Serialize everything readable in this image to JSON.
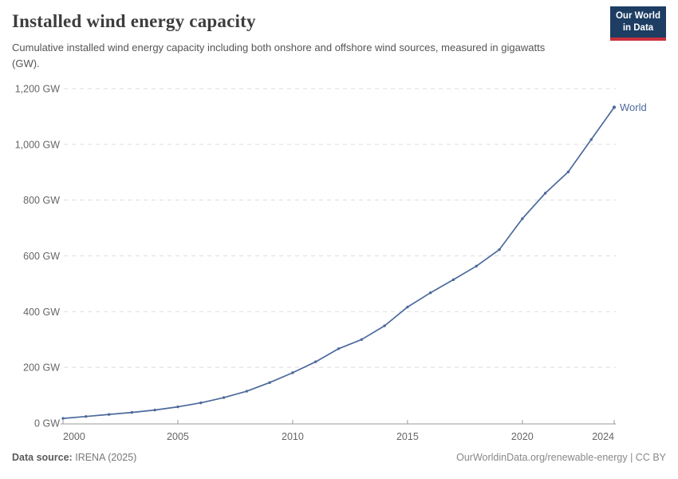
{
  "header": {
    "title": "Installed wind energy capacity",
    "subtitle": "Cumulative installed wind energy capacity including both onshore and offshore wind sources, measured in gigawatts (GW).",
    "logo": {
      "line1": "Our World",
      "line2": "in Data"
    }
  },
  "chart_data": {
    "type": "line",
    "title": "Installed wind energy capacity",
    "xlabel": "",
    "ylabel": "",
    "unit": "GW",
    "xlim": [
      2000,
      2024
    ],
    "ylim": [
      0,
      1200
    ],
    "x_ticks": [
      2000,
      2005,
      2010,
      2015,
      2020,
      2024
    ],
    "y_tick_values": [
      0,
      200,
      400,
      600,
      800,
      1000,
      1200
    ],
    "y_tick_labels": [
      "0 GW",
      "200 GW",
      "400 GW",
      "600 GW",
      "800 GW",
      "1,000 GW",
      "1,200 GW"
    ],
    "grid": "horizontal-dashed",
    "legend_position": "line-end-label",
    "series": [
      {
        "name": "World",
        "color": "#4c6a9c",
        "x": [
          2000,
          2001,
          2002,
          2003,
          2004,
          2005,
          2006,
          2007,
          2008,
          2009,
          2010,
          2011,
          2012,
          2013,
          2014,
          2015,
          2016,
          2017,
          2018,
          2019,
          2020,
          2021,
          2022,
          2023,
          2024
        ],
        "values": [
          16.9,
          23.9,
          31.1,
          38.4,
          46.9,
          58.5,
          72.7,
          91.5,
          114.4,
          145.4,
          180.8,
          220.0,
          266.9,
          299.9,
          349.2,
          416.3,
          467.7,
          514.6,
          563.2,
          622.4,
          733.3,
          824.9,
          901.2,
          1017.2,
          1133.0
        ]
      }
    ]
  },
  "footer": {
    "source_label": "Data source:",
    "source_value": "IRENA (2025)",
    "credit_link": "OurWorldinData.org/renewable-energy",
    "credit_suffix": " | CC BY"
  },
  "colors": {
    "line": "#4c6a9c",
    "logo_bg": "#1d3d63",
    "logo_red": "#c8303c",
    "grid": "#dddddd",
    "axis": "#999999",
    "tick_text": "#666666",
    "title_text": "#3d3d3d",
    "subtitle_text": "#555555",
    "footer_text": "#777777"
  }
}
